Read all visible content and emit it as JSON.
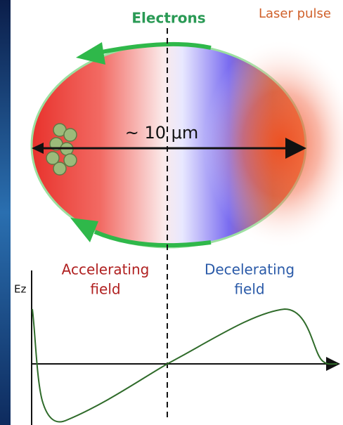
{
  "labels": {
    "electrons": "Electrons",
    "laser_pulse": "Laser pulse",
    "size": "~ 10 μm",
    "accelerating_field": [
      "Accelerating",
      "field"
    ],
    "decelerating_field": [
      "Decelerating",
      "field"
    ],
    "axis": "Ez"
  }
}
